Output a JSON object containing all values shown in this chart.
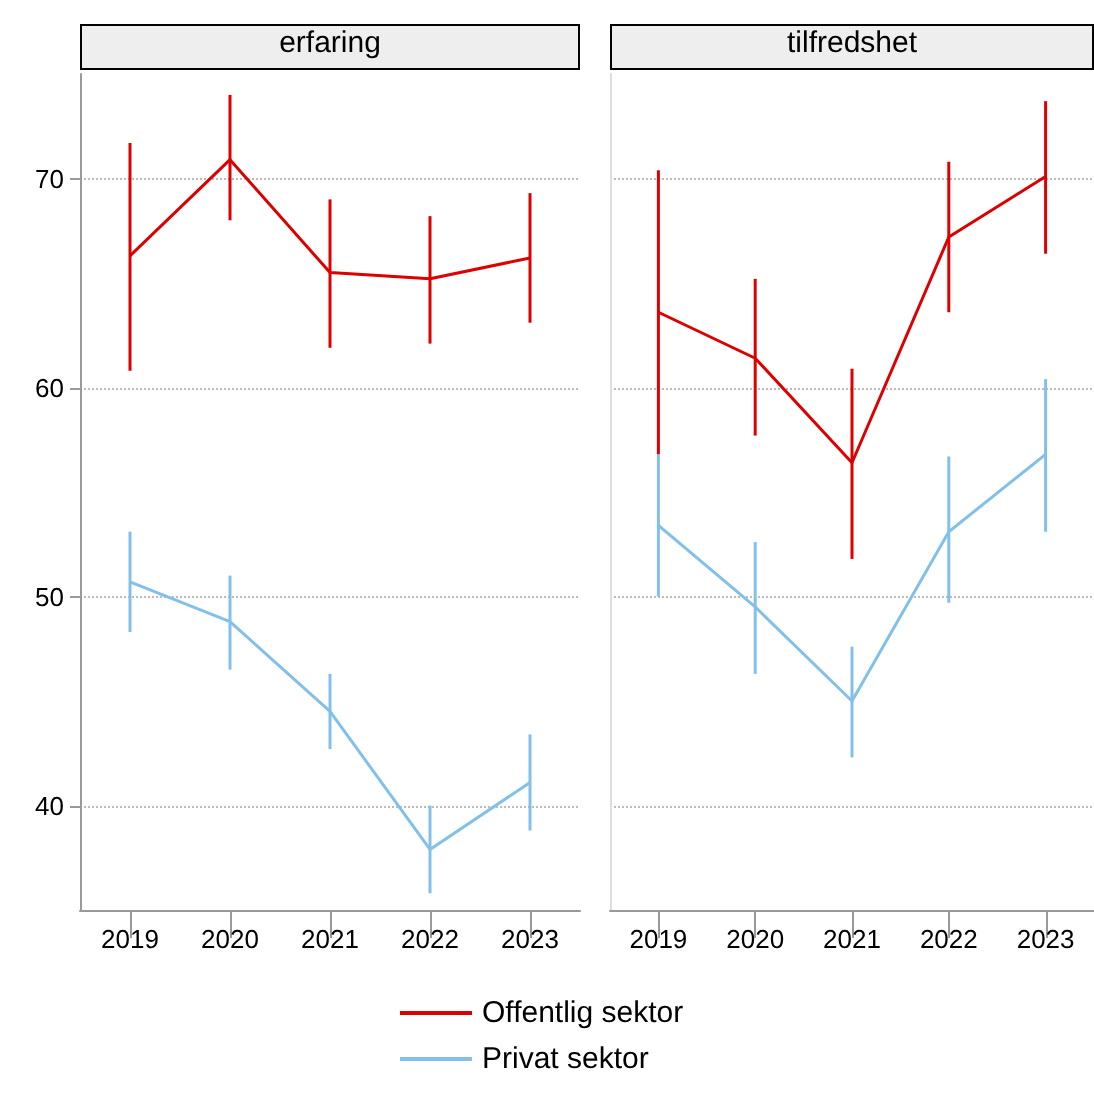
{
  "chart_data": [
    {
      "type": "line",
      "title": "erfaring",
      "categories": [
        "2019",
        "2020",
        "2021",
        "2022",
        "2023"
      ],
      "ylim": [
        35,
        75
      ],
      "yticks": [
        40,
        50,
        60,
        70
      ],
      "grid": "y",
      "legend": "bottom",
      "marker": "none",
      "series": [
        {
          "name": "Offentlig sektor",
          "color": "#dd0000",
          "values": [
            66.3,
            70.9,
            65.5,
            65.2,
            66.2
          ],
          "errors": [
            [
              60.8,
              71.7
            ],
            [
              68.0,
              74.0
            ],
            [
              61.9,
              69.0
            ],
            [
              62.1,
              68.2
            ],
            [
              63.1,
              69.3
            ]
          ]
        },
        {
          "name": "Privat sektor",
          "color": "#82c0ea",
          "values": [
            50.7,
            48.8,
            44.5,
            37.9,
            41.1
          ],
          "errors": [
            [
              48.3,
              53.1
            ],
            [
              46.5,
              51.0
            ],
            [
              42.7,
              46.3
            ],
            [
              35.8,
              40.0
            ],
            [
              38.8,
              43.4
            ]
          ]
        }
      ]
    },
    {
      "type": "line",
      "title": "tilfredshet",
      "categories": [
        "2019",
        "2020",
        "2021",
        "2022",
        "2023"
      ],
      "ylim": [
        35,
        75
      ],
      "yticks": [
        40,
        50,
        60,
        70
      ],
      "grid": "y",
      "tick_labels": "x",
      "marker": "none",
      "series": [
        {
          "color": "#dd0000",
          "values": [
            63.6,
            61.4,
            56.4,
            67.2,
            70.1
          ],
          "errors": [
            [
              56.8,
              70.4
            ],
            [
              57.7,
              65.2
            ],
            [
              51.8,
              60.9
            ],
            [
              63.6,
              70.8
            ],
            [
              66.4,
              73.7
            ]
          ]
        },
        {
          "color": "#82c0ea",
          "values": [
            53.4,
            49.5,
            45.0,
            53.1,
            56.8
          ],
          "errors": [
            [
              50.0,
              56.8
            ],
            [
              46.3,
              52.6
            ],
            [
              42.3,
              47.6
            ],
            [
              49.7,
              56.7
            ],
            [
              53.1,
              60.4
            ]
          ]
        }
      ]
    }
  ]
}
